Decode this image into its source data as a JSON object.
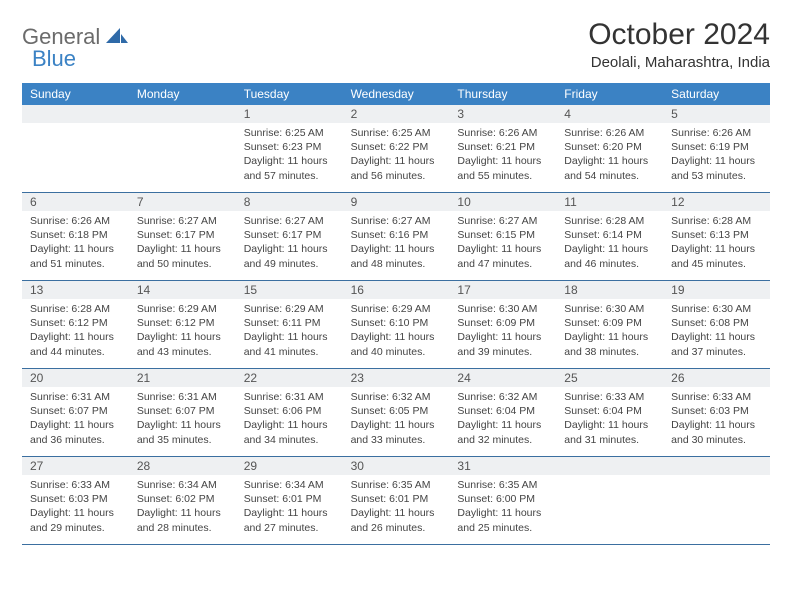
{
  "logo": {
    "text1": "General",
    "text2": "Blue"
  },
  "title": "October 2024",
  "subtitle": "Deolali, Maharashtra, India",
  "colors": {
    "header_bg": "#3b82c4",
    "header_text": "#ffffff",
    "daynum_bg": "#eef0f2",
    "border": "#3b6fa0",
    "body_text": "#444444"
  },
  "weekdays": [
    "Sunday",
    "Monday",
    "Tuesday",
    "Wednesday",
    "Thursday",
    "Friday",
    "Saturday"
  ],
  "first_weekday_index": 2,
  "days": [
    {
      "n": 1,
      "sunrise": "6:25 AM",
      "sunset": "6:23 PM",
      "daylight": "11 hours and 57 minutes."
    },
    {
      "n": 2,
      "sunrise": "6:25 AM",
      "sunset": "6:22 PM",
      "daylight": "11 hours and 56 minutes."
    },
    {
      "n": 3,
      "sunrise": "6:26 AM",
      "sunset": "6:21 PM",
      "daylight": "11 hours and 55 minutes."
    },
    {
      "n": 4,
      "sunrise": "6:26 AM",
      "sunset": "6:20 PM",
      "daylight": "11 hours and 54 minutes."
    },
    {
      "n": 5,
      "sunrise": "6:26 AM",
      "sunset": "6:19 PM",
      "daylight": "11 hours and 53 minutes."
    },
    {
      "n": 6,
      "sunrise": "6:26 AM",
      "sunset": "6:18 PM",
      "daylight": "11 hours and 51 minutes."
    },
    {
      "n": 7,
      "sunrise": "6:27 AM",
      "sunset": "6:17 PM",
      "daylight": "11 hours and 50 minutes."
    },
    {
      "n": 8,
      "sunrise": "6:27 AM",
      "sunset": "6:17 PM",
      "daylight": "11 hours and 49 minutes."
    },
    {
      "n": 9,
      "sunrise": "6:27 AM",
      "sunset": "6:16 PM",
      "daylight": "11 hours and 48 minutes."
    },
    {
      "n": 10,
      "sunrise": "6:27 AM",
      "sunset": "6:15 PM",
      "daylight": "11 hours and 47 minutes."
    },
    {
      "n": 11,
      "sunrise": "6:28 AM",
      "sunset": "6:14 PM",
      "daylight": "11 hours and 46 minutes."
    },
    {
      "n": 12,
      "sunrise": "6:28 AM",
      "sunset": "6:13 PM",
      "daylight": "11 hours and 45 minutes."
    },
    {
      "n": 13,
      "sunrise": "6:28 AM",
      "sunset": "6:12 PM",
      "daylight": "11 hours and 44 minutes."
    },
    {
      "n": 14,
      "sunrise": "6:29 AM",
      "sunset": "6:12 PM",
      "daylight": "11 hours and 43 minutes."
    },
    {
      "n": 15,
      "sunrise": "6:29 AM",
      "sunset": "6:11 PM",
      "daylight": "11 hours and 41 minutes."
    },
    {
      "n": 16,
      "sunrise": "6:29 AM",
      "sunset": "6:10 PM",
      "daylight": "11 hours and 40 minutes."
    },
    {
      "n": 17,
      "sunrise": "6:30 AM",
      "sunset": "6:09 PM",
      "daylight": "11 hours and 39 minutes."
    },
    {
      "n": 18,
      "sunrise": "6:30 AM",
      "sunset": "6:09 PM",
      "daylight": "11 hours and 38 minutes."
    },
    {
      "n": 19,
      "sunrise": "6:30 AM",
      "sunset": "6:08 PM",
      "daylight": "11 hours and 37 minutes."
    },
    {
      "n": 20,
      "sunrise": "6:31 AM",
      "sunset": "6:07 PM",
      "daylight": "11 hours and 36 minutes."
    },
    {
      "n": 21,
      "sunrise": "6:31 AM",
      "sunset": "6:07 PM",
      "daylight": "11 hours and 35 minutes."
    },
    {
      "n": 22,
      "sunrise": "6:31 AM",
      "sunset": "6:06 PM",
      "daylight": "11 hours and 34 minutes."
    },
    {
      "n": 23,
      "sunrise": "6:32 AM",
      "sunset": "6:05 PM",
      "daylight": "11 hours and 33 minutes."
    },
    {
      "n": 24,
      "sunrise": "6:32 AM",
      "sunset": "6:04 PM",
      "daylight": "11 hours and 32 minutes."
    },
    {
      "n": 25,
      "sunrise": "6:33 AM",
      "sunset": "6:04 PM",
      "daylight": "11 hours and 31 minutes."
    },
    {
      "n": 26,
      "sunrise": "6:33 AM",
      "sunset": "6:03 PM",
      "daylight": "11 hours and 30 minutes."
    },
    {
      "n": 27,
      "sunrise": "6:33 AM",
      "sunset": "6:03 PM",
      "daylight": "11 hours and 29 minutes."
    },
    {
      "n": 28,
      "sunrise": "6:34 AM",
      "sunset": "6:02 PM",
      "daylight": "11 hours and 28 minutes."
    },
    {
      "n": 29,
      "sunrise": "6:34 AM",
      "sunset": "6:01 PM",
      "daylight": "11 hours and 27 minutes."
    },
    {
      "n": 30,
      "sunrise": "6:35 AM",
      "sunset": "6:01 PM",
      "daylight": "11 hours and 26 minutes."
    },
    {
      "n": 31,
      "sunrise": "6:35 AM",
      "sunset": "6:00 PM",
      "daylight": "11 hours and 25 minutes."
    }
  ],
  "labels": {
    "sunrise": "Sunrise:",
    "sunset": "Sunset:",
    "daylight": "Daylight:"
  }
}
